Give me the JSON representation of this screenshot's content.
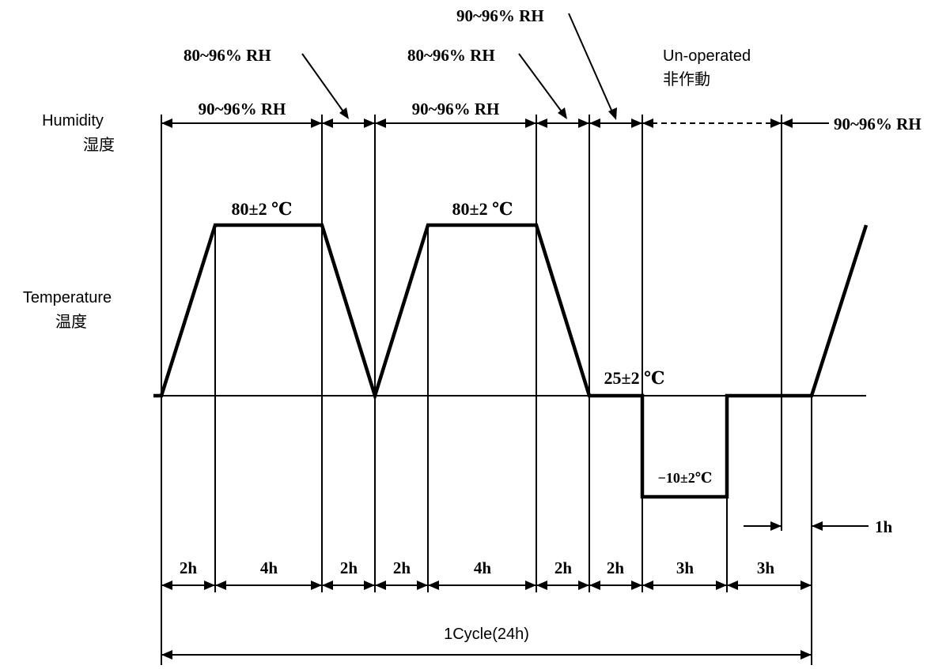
{
  "labels": {
    "humidity_en": "Humidity",
    "humidity_cn": "湿度",
    "temperature_en": "Temperature",
    "temperature_cn": "温度",
    "unoperated_en": "Un-operated",
    "unoperated_cn": "非作動"
  },
  "humidity": {
    "segment_1": "90~96% RH",
    "transition_1": "80~96% RH",
    "segment_2": "90~96% RH",
    "transition_2": "80~96% RH",
    "transition_3": "90~96% RH",
    "final": "90~96% RH"
  },
  "temperature": {
    "high_1": "80±2 ℃",
    "high_2": "80±2 ℃",
    "room": "25±2 ℃",
    "low": "−10±2℃"
  },
  "durations": [
    "2h",
    "4h",
    "2h",
    "2h",
    "4h",
    "2h",
    "2h",
    "3h",
    "3h"
  ],
  "offset": "1h",
  "cycle": "1Cycle(24h)"
}
